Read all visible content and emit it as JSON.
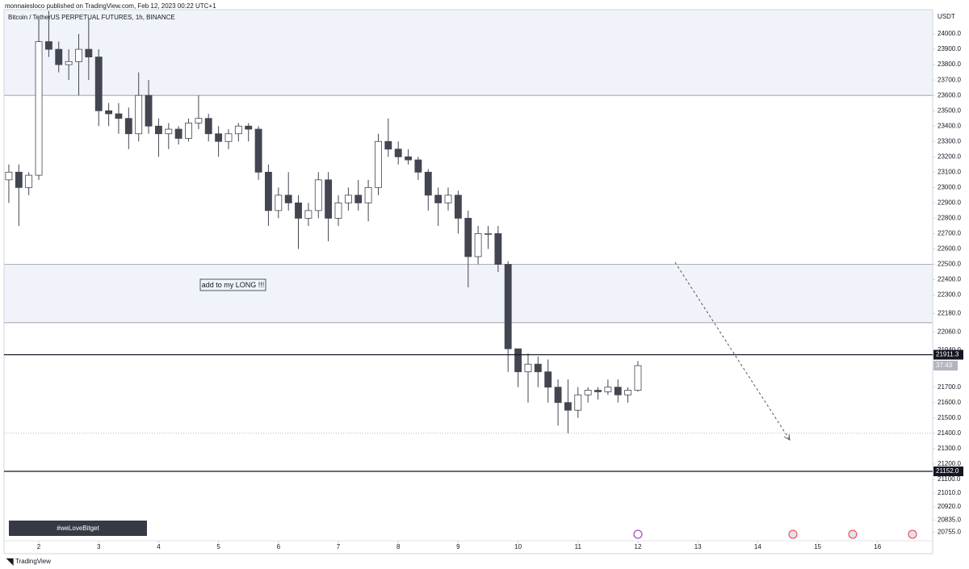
{
  "header": "monnaiesloco published on TradingView.com, Feb 12, 2023 00:22 UTC+1",
  "footer": "TradingView",
  "banner": "#weLoveBitget",
  "chart_data": {
    "type": "candlestick",
    "title": "Bitcoin / TetherUS PERPETUAL FUTURES, 1h, BINANCE",
    "y_axis_label": "USDT",
    "annotation": "add to my LONG !!!",
    "countdown": "37:43",
    "x": [
      1.5,
      1.667,
      1.833,
      2,
      2.167,
      2.333,
      2.5,
      2.667,
      2.833,
      3,
      3.167,
      3.333,
      3.5,
      3.667,
      3.833,
      4,
      4.167,
      4.333,
      4.5,
      4.667,
      4.833,
      5,
      5.167,
      5.333,
      5.5,
      5.667,
      5.833,
      6,
      6.167,
      6.333,
      6.5,
      6.667,
      6.833,
      7,
      7.167,
      7.333,
      7.5,
      7.667,
      7.833,
      8,
      8.167,
      8.333,
      8.5,
      8.667,
      8.833,
      9,
      9.167,
      9.333,
      9.5,
      9.667,
      9.833,
      10,
      10.167,
      10.333,
      10.5,
      10.667,
      10.833,
      11,
      11.167,
      11.333,
      11.5,
      11.667,
      11.833,
      12
    ],
    "open": [
      23050,
      23100,
      23000,
      23080,
      23950,
      23900,
      23800,
      23820,
      23900,
      23850,
      23500,
      23480,
      23450,
      23350,
      23600,
      23400,
      23350,
      23380,
      23320,
      23420,
      23450,
      23350,
      23300,
      23350,
      23400,
      23380,
      23100,
      22850,
      22950,
      22900,
      22800,
      22850,
      23050,
      22800,
      22900,
      22950,
      22900,
      23000,
      23300,
      23250,
      23200,
      23180,
      23100,
      22950,
      22900,
      22950,
      22800,
      22550,
      22700,
      22700,
      22500,
      21950,
      21800,
      21850,
      21800,
      21700,
      21600,
      21550,
      21650,
      21680,
      21670,
      21700,
      21650,
      21680
    ],
    "high": [
      23150,
      23150,
      23100,
      24100,
      24150,
      23950,
      23900,
      24000,
      24100,
      23900,
      23550,
      23550,
      23520,
      23750,
      23700,
      23450,
      23420,
      23400,
      23450,
      23600,
      23480,
      23400,
      23380,
      23420,
      23420,
      23400,
      23150,
      23000,
      23100,
      22950,
      22900,
      23100,
      23100,
      22950,
      23000,
      23050,
      23050,
      23350,
      23450,
      23300,
      23250,
      23200,
      23120,
      23000,
      23000,
      22980,
      22850,
      22750,
      22750,
      22750,
      22520,
      21950,
      21920,
      21900,
      21880,
      21750,
      21750,
      21700,
      21700,
      21700,
      21750,
      21750,
      21700,
      21870
    ],
    "low": [
      22900,
      22750,
      22950,
      23050,
      23850,
      23750,
      23700,
      23600,
      23700,
      23400,
      23400,
      23350,
      23250,
      23300,
      23350,
      23200,
      23250,
      23280,
      23300,
      23380,
      23300,
      23200,
      23250,
      23300,
      23300,
      23050,
      22750,
      22800,
      22850,
      22600,
      22750,
      22800,
      22650,
      22750,
      22850,
      22850,
      22780,
      22950,
      23200,
      23150,
      23150,
      23050,
      22850,
      22750,
      22850,
      22700,
      22350,
      22500,
      22600,
      22450,
      21800,
      21700,
      21600,
      21700,
      21600,
      21450,
      21400,
      21500,
      21600,
      21620,
      21650,
      21600,
      21600,
      21670
    ],
    "close": [
      23100,
      23000,
      23080,
      23950,
      23900,
      23800,
      23820,
      23900,
      23850,
      23500,
      23480,
      23450,
      23350,
      23600,
      23400,
      23350,
      23380,
      23320,
      23420,
      23450,
      23350,
      23300,
      23350,
      23400,
      23380,
      23100,
      22850,
      22950,
      22900,
      22800,
      22850,
      23050,
      22800,
      22900,
      22950,
      22900,
      23000,
      23300,
      23250,
      23200,
      23180,
      23100,
      22950,
      22900,
      22950,
      22800,
      22550,
      22700,
      22700,
      22500,
      21950,
      21800,
      21850,
      21800,
      21700,
      21600,
      21550,
      21650,
      21680,
      21670,
      21700,
      21650,
      21680,
      21840
    ],
    "up_color": "#ffffff",
    "down_color": "#434651",
    "wick_color": "#434651",
    "zones": [
      {
        "low": 23600,
        "high": 24158
      },
      {
        "low": 22120,
        "high": 22500
      }
    ],
    "dotted_level": 21400,
    "levels": [
      {
        "value": 21911.3,
        "label": "21911.3"
      },
      {
        "value": 21152,
        "label": "21152.0"
      }
    ],
    "xlim": [
      1.42,
      16.92
    ],
    "xticks": [
      2,
      3,
      4,
      5,
      6,
      7,
      8,
      9,
      10,
      11,
      12,
      13,
      14,
      15,
      16
    ],
    "ylim": [
      20700,
      24158
    ],
    "yticks": [
      {
        "value": 24000,
        "label": "24000.0"
      },
      {
        "value": 23900,
        "label": "23900.0"
      },
      {
        "value": 23800,
        "label": "23800.0"
      },
      {
        "value": 23700,
        "label": "23700.0"
      },
      {
        "value": 23600,
        "label": "23600.0"
      },
      {
        "value": 23500,
        "label": "23500.0"
      },
      {
        "value": 23400,
        "label": "23400.0"
      },
      {
        "value": 23300,
        "label": "23300.0"
      },
      {
        "value": 23200,
        "label": "23200.0"
      },
      {
        "value": 23100,
        "label": "23100.0"
      },
      {
        "value": 23000,
        "label": "23000.0"
      },
      {
        "value": 22900,
        "label": "22900.0"
      },
      {
        "value": 22800,
        "label": "22800.0"
      },
      {
        "value": 22700,
        "label": "22700.0"
      },
      {
        "value": 22600,
        "label": "22600.0"
      },
      {
        "value": 22500,
        "label": "22500.0"
      },
      {
        "value": 22400,
        "label": "22400.0"
      },
      {
        "value": 22300,
        "label": "22300.0"
      },
      {
        "value": 22180,
        "label": "22180.0"
      },
      {
        "value": 22060,
        "label": "22060.0"
      },
      {
        "value": 21940,
        "label": "21940.0"
      },
      {
        "value": 21700,
        "label": "21700.0"
      },
      {
        "value": 21600,
        "label": "21600.0"
      },
      {
        "value": 21500,
        "label": "21500.0"
      },
      {
        "value": 21400,
        "label": "21400.0"
      },
      {
        "value": 21300,
        "label": "21300.0"
      },
      {
        "value": 21200,
        "label": "21200.0"
      },
      {
        "value": 21100,
        "label": "21100.0"
      },
      {
        "value": 21010,
        "label": "21010.0"
      },
      {
        "value": 20920,
        "label": "20920.0"
      },
      {
        "value": 20835,
        "label": "20835.0"
      },
      {
        "value": 20755,
        "label": "20755.0"
      }
    ]
  }
}
